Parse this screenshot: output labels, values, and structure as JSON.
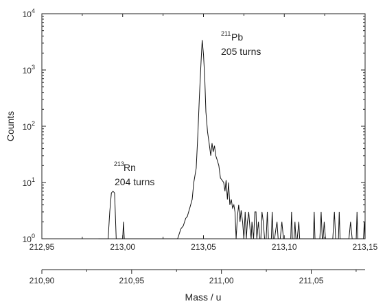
{
  "chart_data": {
    "type": "line",
    "title": "",
    "xlabel": "Mass / u",
    "ylabel": "Counts",
    "y_scale": "log",
    "ylim": [
      1,
      10000
    ],
    "y_ticks": [
      {
        "value": 1,
        "base": "10",
        "exp": "0"
      },
      {
        "value": 10,
        "base": "10",
        "exp": "1"
      },
      {
        "value": 100,
        "base": "10",
        "exp": "2"
      },
      {
        "value": 1000,
        "base": "10",
        "exp": "3"
      },
      {
        "value": 10000,
        "base": "10",
        "exp": "4"
      }
    ],
    "x_top": {
      "range": [
        212.95,
        213.15
      ],
      "ticks": [
        212.95,
        213.0,
        213.05,
        213.1,
        213.15
      ],
      "tick_labels": [
        "212,95",
        "213,00",
        "213,05",
        "213,10",
        "213,15"
      ]
    },
    "x_bottom": {
      "range": [
        210.9,
        211.08
      ],
      "ticks": [
        210.9,
        210.95,
        211.0,
        211.05
      ],
      "tick_labels": [
        "210,90",
        "210,95",
        "211,00",
        "211,05"
      ]
    },
    "annotations": [
      {
        "element_mass": "213",
        "element_symbol": "Rn",
        "turns_text": "204 turns",
        "x": 212.9905,
        "y": 20
      },
      {
        "element_mass": "211",
        "element_symbol": "Pb",
        "turns_text": "205 turns",
        "x": 213.051,
        "y": 2400
      }
    ],
    "series": [
      {
        "points": [
          [
            212.985,
            1
          ],
          [
            212.991,
            1
          ],
          [
            212.992,
            3
          ],
          [
            212.993,
            6.5
          ],
          [
            212.994,
            7
          ],
          [
            212.995,
            6.5
          ],
          [
            212.996,
            1
          ],
          [
            213.0,
            1
          ],
          [
            213.0005,
            2
          ],
          [
            213.001,
            1
          ],
          [
            213.034,
            1
          ],
          [
            213.036,
            1.5
          ],
          [
            213.0375,
            1.7
          ],
          [
            213.039,
            2.3
          ],
          [
            213.04,
            2.5
          ],
          [
            213.0415,
            3.5
          ],
          [
            213.043,
            5
          ],
          [
            213.044,
            10
          ],
          [
            213.0455,
            18
          ],
          [
            213.0465,
            70
          ],
          [
            213.0475,
            350
          ],
          [
            213.0485,
            1400
          ],
          [
            213.0492,
            3400
          ],
          [
            213.05,
            1900
          ],
          [
            213.0508,
            700
          ],
          [
            213.0515,
            180
          ],
          [
            213.0525,
            80
          ],
          [
            213.0535,
            50
          ],
          [
            213.0545,
            30
          ],
          [
            213.0553,
            50
          ],
          [
            213.056,
            35
          ],
          [
            213.0568,
            45
          ],
          [
            213.0576,
            30
          ],
          [
            213.0585,
            25
          ],
          [
            213.0595,
            20
          ],
          [
            213.0605,
            12
          ],
          [
            213.0615,
            11
          ],
          [
            213.0625,
            10
          ],
          [
            213.0633,
            7
          ],
          [
            213.064,
            11
          ],
          [
            213.0648,
            5
          ],
          [
            213.0655,
            10
          ],
          [
            213.0663,
            4
          ],
          [
            213.0672,
            5
          ],
          [
            213.068,
            3.5
          ],
          [
            213.0688,
            4
          ],
          [
            213.0695,
            3
          ],
          [
            213.0702,
            1
          ],
          [
            213.071,
            2.5
          ],
          [
            213.0718,
            4
          ],
          [
            213.0726,
            2
          ],
          [
            213.0733,
            3.2
          ],
          [
            213.0742,
            2
          ],
          [
            213.075,
            1
          ],
          [
            213.0758,
            3
          ],
          [
            213.0765,
            1
          ],
          [
            213.0772,
            2
          ],
          [
            213.078,
            3
          ],
          [
            213.0788,
            1.5
          ],
          [
            213.0795,
            1
          ],
          [
            213.08,
            2
          ],
          [
            213.081,
            1
          ],
          [
            213.0818,
            3
          ],
          [
            213.0825,
            3
          ],
          [
            213.083,
            1
          ],
          [
            213.084,
            2
          ],
          [
            213.0848,
            1
          ],
          [
            213.0855,
            1
          ],
          [
            213.0862,
            3
          ],
          [
            213.087,
            2
          ],
          [
            213.0878,
            1
          ],
          [
            213.0888,
            1
          ],
          [
            213.0895,
            3
          ],
          [
            213.0902,
            1
          ],
          [
            213.091,
            1
          ],
          [
            213.092,
            1
          ],
          [
            213.0925,
            3
          ],
          [
            213.0932,
            1
          ],
          [
            213.094,
            1
          ],
          [
            213.0948,
            1.5
          ],
          [
            213.0955,
            2
          ],
          [
            213.0962,
            1
          ],
          [
            213.0975,
            1
          ],
          [
            213.0985,
            2
          ],
          [
            213.0995,
            1
          ],
          [
            213.104,
            1
          ],
          [
            213.1045,
            3
          ],
          [
            213.105,
            1
          ],
          [
            213.106,
            1
          ],
          [
            213.1066,
            2
          ],
          [
            213.1072,
            1
          ],
          [
            213.108,
            1
          ],
          [
            213.109,
            2
          ],
          [
            213.1095,
            1
          ],
          [
            213.118,
            1
          ],
          [
            213.1185,
            3
          ],
          [
            213.119,
            1
          ],
          [
            213.122,
            1
          ],
          [
            213.1228,
            3
          ],
          [
            213.1235,
            1
          ],
          [
            213.124,
            1
          ],
          [
            213.1247,
            2
          ],
          [
            213.1255,
            1
          ],
          [
            213.13,
            1
          ],
          [
            213.131,
            3
          ],
          [
            213.1318,
            1
          ],
          [
            213.1335,
            1
          ],
          [
            213.134,
            3
          ],
          [
            213.1345,
            1
          ],
          [
            213.14,
            1
          ],
          [
            213.141,
            2
          ],
          [
            213.142,
            1
          ],
          [
            213.1445,
            1
          ],
          [
            213.145,
            3
          ],
          [
            213.1455,
            1
          ],
          [
            213.149,
            1
          ],
          [
            213.1495,
            2
          ],
          [
            213.15,
            1
          ]
        ]
      }
    ]
  }
}
